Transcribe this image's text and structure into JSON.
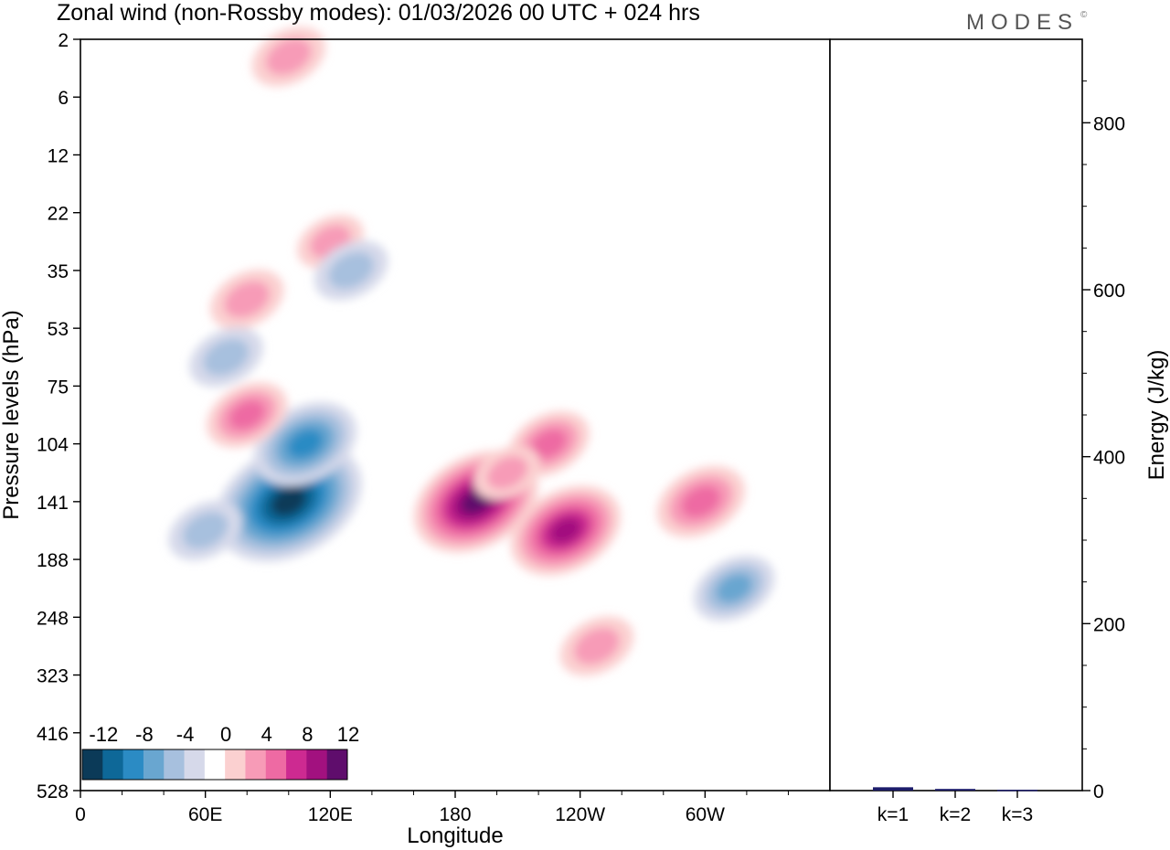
{
  "title": "Zonal wind (non-Rossby modes):  01/03/2026  00 UTC  + 024 hrs",
  "logo": "MODES",
  "logo_mark": "©",
  "colors": {
    "levels": [
      "#0b3a58",
      "#0e6898",
      "#2b8bc4",
      "#69a6d0",
      "#a7c0de",
      "#d6d9ea",
      "#ffffff",
      "#fbd0d0",
      "#f79bb7",
      "#ee6aa3",
      "#cd2a91",
      "#a2117f",
      "#5f0d6c"
    ],
    "bar": "#1c1c6a"
  },
  "chart_data": [
    {
      "type": "heatmap",
      "title": "Zonal wind (non-Rossby modes):  01/03/2026  00 UTC  + 024 hrs",
      "xlabel": "Longitude",
      "ylabel": "Pressure levels (hPa)",
      "x_ticks": [
        "0",
        "60E",
        "120E",
        "180",
        "120W",
        "60W"
      ],
      "x_range_deg_east": [
        0,
        360
      ],
      "y_ticks": [
        "2",
        "6",
        "12",
        "22",
        "35",
        "53",
        "75",
        "104",
        "141",
        "188",
        "248",
        "323",
        "416",
        "528"
      ],
      "colorbar_labels": [
        "-12",
        "-8",
        "-4",
        "0",
        "4",
        "8",
        "12"
      ],
      "features": [
        {
          "lon": 100,
          "level_index": 8,
          "value": -15
        },
        {
          "lon": 108,
          "level_index": 7,
          "value": -9
        },
        {
          "lon": 60,
          "level_index": 8.5,
          "value": -5
        },
        {
          "lon": 190,
          "level_index": 8,
          "value": 12
        },
        {
          "lon": 233,
          "level_index": 8.5,
          "value": 10
        },
        {
          "lon": 225,
          "level_index": 7,
          "value": 6
        },
        {
          "lon": 205,
          "level_index": 7.5,
          "value": 4
        },
        {
          "lon": 248,
          "level_index": 10.5,
          "value": 5
        },
        {
          "lon": 298,
          "level_index": 8,
          "value": 7
        },
        {
          "lon": 314,
          "level_index": 9.5,
          "value": -6
        },
        {
          "lon": 80,
          "level_index": 6.5,
          "value": 6
        },
        {
          "lon": 80,
          "level_index": 4.5,
          "value": 5
        },
        {
          "lon": 70,
          "level_index": 5.5,
          "value": -5
        },
        {
          "lon": 120,
          "level_index": 3.5,
          "value": 4
        },
        {
          "lon": 130,
          "level_index": 4,
          "value": -5
        },
        {
          "lon": 100,
          "level_index": 0.3,
          "value": 5
        }
      ]
    },
    {
      "type": "bar",
      "ylabel": "Energy (J/kg)",
      "categories": [
        "k=1",
        "k=2",
        "k=3"
      ],
      "values": [
        4,
        2,
        1
      ],
      "ylim": [
        0,
        900
      ],
      "y_ticks": [
        0,
        200,
        400,
        600,
        800
      ]
    }
  ]
}
